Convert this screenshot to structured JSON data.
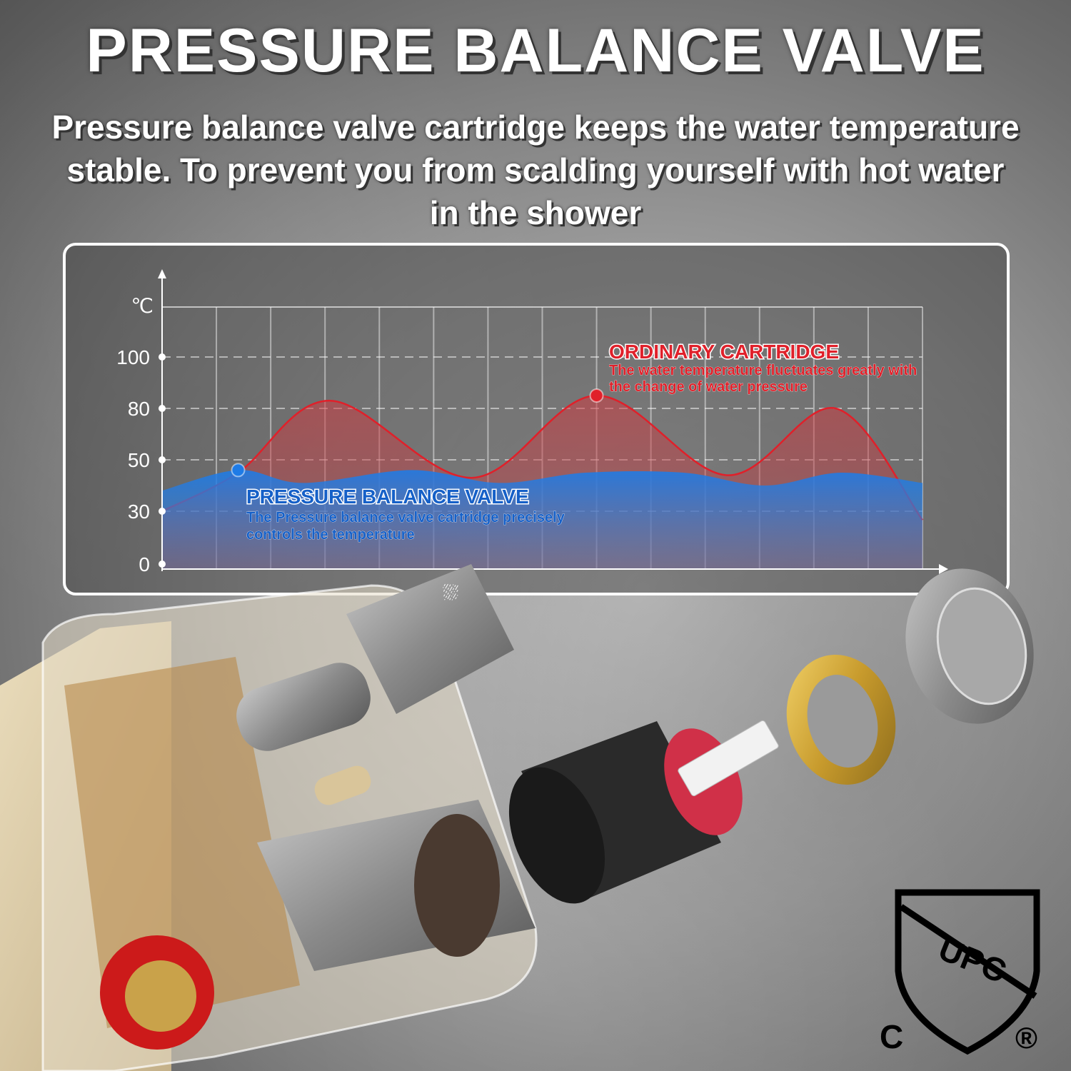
{
  "header": {
    "title": "PRESSURE BALANCE VALVE",
    "subtitle_lines": [
      "Pressure balance valve cartridge keeps the water temperature",
      "stable. To prevent you from scalding yourself with hot water",
      "in the shower"
    ]
  },
  "chart_data": {
    "type": "area",
    "ylabel": "℃",
    "y_ticks": [
      "0",
      "30",
      "50",
      "80",
      "100"
    ],
    "y_scale": "non-linear, equally spaced ticks",
    "x_range": [
      0,
      14
    ],
    "grid": true,
    "series": [
      {
        "name": "ORDINARY CARTRIDGE",
        "description": "The water temperature fluctuates greatly with the change of water pressure",
        "color": "#e0202a",
        "x": [
          0,
          1.4,
          3.1,
          5.7,
          8.0,
          10.4,
          12.4,
          14
        ],
        "y": [
          30,
          45,
          83,
          43,
          85,
          44,
          80,
          25
        ],
        "marker_index": 4
      },
      {
        "name": "PRESSURE BALANCE VALVE",
        "description": "The Pressure balance valve cartridge precisely controls the temperature",
        "color": "#1e7be6",
        "x": [
          0,
          1.4,
          2.6,
          4.6,
          6.2,
          7.8,
          9.6,
          11.1,
          12.5,
          14
        ],
        "y": [
          38,
          46,
          41,
          46,
          41,
          45,
          45,
          40,
          45,
          41
        ],
        "marker_index": 1
      }
    ]
  },
  "certification": {
    "logo_text": "UPC",
    "left_mark": "C",
    "right_mark": "®"
  },
  "colors": {
    "hot": "#e0202a",
    "cold": "#1e7be6",
    "background": "#8f8f8f"
  }
}
